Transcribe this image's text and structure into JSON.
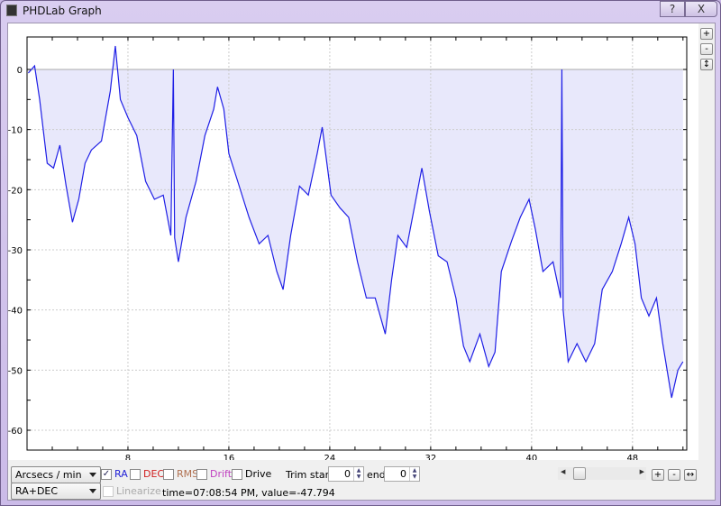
{
  "window": {
    "title": "PHDLab Graph",
    "help_label": "?",
    "close_label": "X"
  },
  "side_buttons": {
    "zoom_in": "+",
    "zoom_out": "-",
    "fit": "↕"
  },
  "controls": {
    "units_select": "Arcsecs / min",
    "axis_select": "RA+DEC",
    "checkboxes": [
      {
        "label": "RA",
        "checked": true,
        "color": "#1f1fd6"
      },
      {
        "label": "DEC",
        "checked": false,
        "color": "#d02020"
      },
      {
        "label": "RMS",
        "checked": false,
        "color": "#b07050"
      },
      {
        "label": "Drift",
        "checked": false,
        "color": "#c040c0"
      },
      {
        "label": "Drive",
        "checked": false,
        "color": "#000000"
      }
    ],
    "linearize": {
      "label": "Linearize",
      "checked": false,
      "enabled": false
    },
    "trim_start_label": "Trim start:",
    "trim_start": "0",
    "trim_end_label": "end:",
    "trim_end": "0",
    "status": "time=07:08:54 PM, value=-47.794",
    "hzoom_in": "+",
    "hzoom_out": "-",
    "hfit": "↔",
    "scroll_position": 0.04
  },
  "chart_data": {
    "type": "area",
    "xlim": [
      0,
      52.3
    ],
    "ylim": [
      -63.3,
      5.4
    ],
    "xticks": [
      8,
      16,
      24,
      32,
      40,
      48
    ],
    "yticks": [
      0,
      -10,
      -20,
      -30,
      -40,
      -50,
      -60
    ],
    "grid": true,
    "baseline": 0,
    "color": "#1f1fe6",
    "fill": "#e8e8fb",
    "series": [
      {
        "points": [
          [
            0.1,
            -0.6
          ],
          [
            0.6,
            0.6
          ],
          [
            1,
            -5
          ],
          [
            1.6,
            -15.6
          ],
          [
            2.1,
            -16.4
          ],
          [
            2.6,
            -12.6
          ],
          [
            3.1,
            -19.4
          ],
          [
            3.6,
            -25.4
          ],
          [
            4.1,
            -21.6
          ],
          [
            4.6,
            -15.6
          ],
          [
            5.1,
            -13.4
          ],
          [
            5.9,
            -11.9
          ],
          [
            6.6,
            -3.6
          ],
          [
            7,
            3.9
          ],
          [
            7.4,
            -5
          ],
          [
            8,
            -8
          ],
          [
            8.7,
            -11
          ],
          [
            9.4,
            -18.6
          ],
          [
            10.1,
            -21.6
          ],
          [
            10.8,
            -20.9
          ],
          [
            11.4,
            -27.6
          ],
          [
            11.6,
            0
          ],
          [
            11.7,
            -28
          ],
          [
            12,
            -32
          ],
          [
            12.6,
            -24.6
          ],
          [
            13.4,
            -18.6
          ],
          [
            14.1,
            -11
          ],
          [
            14.8,
            -6.6
          ],
          [
            15.1,
            -2.9
          ],
          [
            15.6,
            -6.6
          ],
          [
            16,
            -14
          ],
          [
            16.7,
            -18.6
          ],
          [
            17.6,
            -24.6
          ],
          [
            18.4,
            -29
          ],
          [
            19.1,
            -27.6
          ],
          [
            19.8,
            -33.6
          ],
          [
            20.3,
            -36.6
          ],
          [
            20.9,
            -27.6
          ],
          [
            21.6,
            -19.4
          ],
          [
            22.3,
            -20.9
          ],
          [
            23,
            -14
          ],
          [
            23.4,
            -9.6
          ],
          [
            24.1,
            -20.9
          ],
          [
            24.8,
            -23
          ],
          [
            25.5,
            -24.6
          ],
          [
            26.2,
            -32
          ],
          [
            26.9,
            -38
          ],
          [
            27.6,
            -38
          ],
          [
            28.4,
            -44
          ],
          [
            28.9,
            -35
          ],
          [
            29.4,
            -27.6
          ],
          [
            30.1,
            -29.6
          ],
          [
            30.7,
            -23
          ],
          [
            31.3,
            -16.4
          ],
          [
            31.9,
            -23.6
          ],
          [
            32.6,
            -31
          ],
          [
            33.3,
            -32
          ],
          [
            34,
            -38
          ],
          [
            34.6,
            -46
          ],
          [
            35.1,
            -48.6
          ],
          [
            35.9,
            -44
          ],
          [
            36.6,
            -49.4
          ],
          [
            37.1,
            -47
          ],
          [
            37.6,
            -33.6
          ],
          [
            38.4,
            -28.6
          ],
          [
            39.1,
            -24.6
          ],
          [
            39.8,
            -21.6
          ],
          [
            40.3,
            -26.6
          ],
          [
            40.9,
            -33.6
          ],
          [
            41.7,
            -32
          ],
          [
            42.3,
            -38
          ],
          [
            42.4,
            0
          ],
          [
            42.5,
            -40
          ],
          [
            42.9,
            -48.6
          ],
          [
            43.6,
            -45.6
          ],
          [
            44.3,
            -48.6
          ],
          [
            45,
            -45.6
          ],
          [
            45.6,
            -36.6
          ],
          [
            46.4,
            -33.6
          ],
          [
            47.1,
            -29
          ],
          [
            47.7,
            -24.6
          ],
          [
            48.2,
            -29
          ],
          [
            48.7,
            -38
          ],
          [
            49.3,
            -41
          ],
          [
            49.9,
            -38
          ],
          [
            50.4,
            -45.6
          ],
          [
            51.1,
            -54.6
          ],
          [
            51.6,
            -50
          ],
          [
            52,
            -48.6
          ]
        ]
      }
    ]
  }
}
